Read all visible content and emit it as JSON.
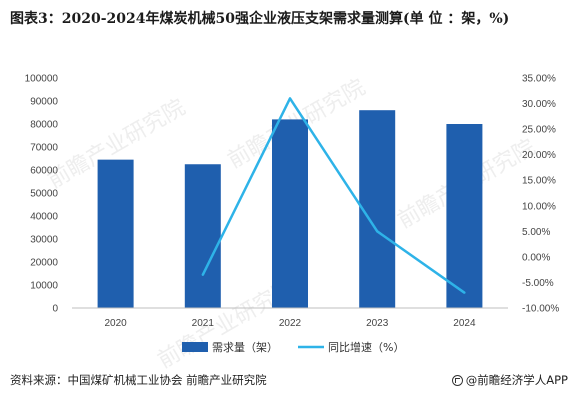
{
  "title": "图表3：2020-2024年煤炭机械50强企业液压支架需求量测算(单 位 ：架，%)",
  "source": "资料来源：中国煤矿机械工业协会 前瞻产业研究院",
  "brand": "@前瞻经济学人APP",
  "watermark_text": "前瞻产业研究院",
  "colors": {
    "bar": "#1f5fae",
    "line": "#2eb3e8",
    "grid": "#e3e3e3",
    "watermark": "#eeeeee"
  },
  "chart_data": {
    "type": "bar+line",
    "categories": [
      "2020",
      "2021",
      "2022",
      "2023",
      "2024"
    ],
    "series": [
      {
        "name": "需求量（架）",
        "type": "bar",
        "axis": "left",
        "values": [
          64500,
          62500,
          82000,
          86000,
          80000
        ]
      },
      {
        "name": "同比增速（%）",
        "type": "line",
        "axis": "right",
        "values": [
          null,
          -3.5,
          31.0,
          5.0,
          -7.0
        ]
      }
    ],
    "y_left": {
      "min": 0,
      "max": 100000,
      "ticks": [
        "0",
        "10000",
        "20000",
        "30000",
        "40000",
        "50000",
        "60000",
        "70000",
        "80000",
        "90000",
        "100000"
      ]
    },
    "y_right": {
      "min": -10,
      "max": 35,
      "ticks": [
        "-10.00%",
        "-5.00%",
        "0.00%",
        "5.00%",
        "10.00%",
        "15.00%",
        "20.00%",
        "25.00%",
        "30.00%",
        "35.00%"
      ]
    },
    "legend_position": "bottom",
    "grid": false
  }
}
